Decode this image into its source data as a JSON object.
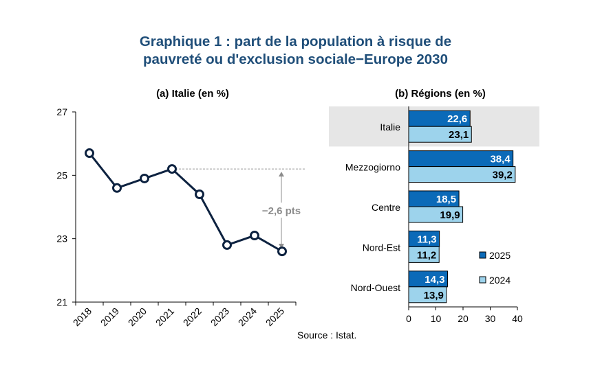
{
  "title_line1": "Graphique 1 : part de la population à risque de",
  "title_line2": "pauvreté ou d'exclusion sociale−Europe 2030",
  "source": "Source : Istat.",
  "colors": {
    "title": "#1f4e79",
    "line": "#0d2240",
    "series_2025": "#0b6ab8",
    "series_2024": "#9dd3ec",
    "highlight_band": "#e6e6e6",
    "annotation": "#8c8c8c"
  },
  "chart_data": [
    {
      "type": "line",
      "title": "(a) Italie (en %)",
      "categories": [
        "2018",
        "2019",
        "2020",
        "2021",
        "2022",
        "2023",
        "2024",
        "2025"
      ],
      "values": [
        25.7,
        24.6,
        24.9,
        25.2,
        24.4,
        22.8,
        23.1,
        22.6
      ],
      "ylim": [
        21,
        27
      ],
      "yticks": [
        "21",
        "23",
        "25",
        "27"
      ],
      "annotation": "−2,6 pts",
      "xlabel": "",
      "ylabel": ""
    },
    {
      "type": "bar",
      "orientation": "horizontal",
      "title": "(b) Régions (en %)",
      "categories": [
        "Italie",
        "Mezzogiorno",
        "Centre",
        "Nord-Est",
        "Nord-Ouest"
      ],
      "series": [
        {
          "name": "2025",
          "values": [
            22.6,
            38.4,
            18.5,
            11.3,
            14.3
          ],
          "labels": [
            "22,6",
            "38,4",
            "18,5",
            "11,3",
            "14,3"
          ]
        },
        {
          "name": "2024",
          "values": [
            23.1,
            39.2,
            19.9,
            11.2,
            13.9
          ],
          "labels": [
            "23,1",
            "39,2",
            "19,9",
            "11,2",
            "13,9"
          ]
        }
      ],
      "xlim": [
        0,
        40
      ],
      "xticks": [
        "0",
        "10",
        "20",
        "30",
        "40"
      ],
      "legend": [
        "2025",
        "2024"
      ],
      "highlight": "Italie"
    }
  ]
}
